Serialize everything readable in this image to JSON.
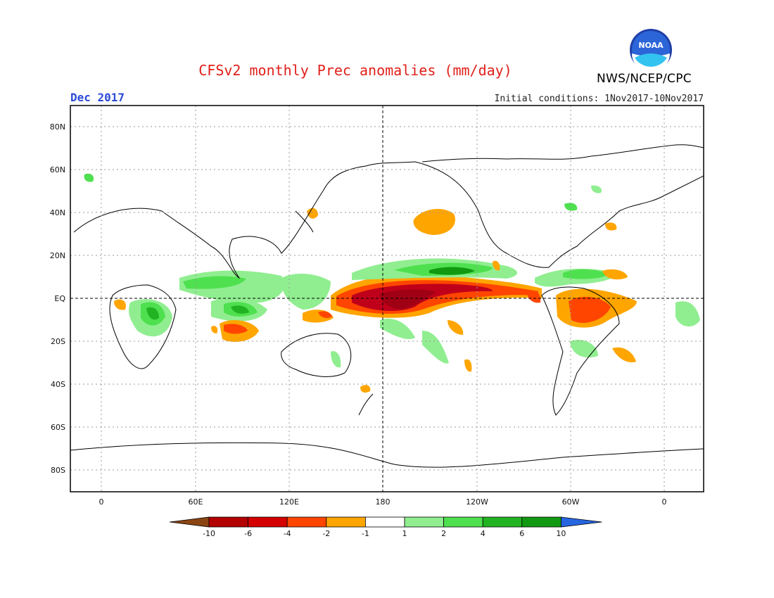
{
  "header": {
    "title": "CFSv2 monthly Prec anomalies (mm/day)",
    "agency": "NWS/NCEP/CPC",
    "logo_text": "NOAA",
    "valid_month": "Dec 2017",
    "initial_conditions": "Initial conditions: 1Nov2017-10Nov2017"
  },
  "map": {
    "projection": "cylindrical equidistant",
    "lat_range": [
      -90,
      90
    ],
    "lon_range": [
      -20,
      380
    ],
    "lat_labels": [
      "80N",
      "60N",
      "40N",
      "20N",
      "EQ",
      "20S",
      "40S",
      "60S",
      "80S"
    ],
    "lon_labels": [
      "0",
      "60E",
      "120E",
      "180",
      "120W",
      "60W",
      "0"
    ],
    "grid": "dotted"
  },
  "colorbar": {
    "labels": [
      "-10",
      "-6",
      "-4",
      "-2",
      "-1",
      "1",
      "2",
      "4",
      "6",
      "10"
    ],
    "colors": [
      "#8b4513",
      "#b30000",
      "#d40000",
      "#ff4500",
      "#ffa500",
      "#ffffff",
      "#90ee90",
      "#4fe04f",
      "#22b322",
      "#119911",
      "#2866e0"
    ]
  }
}
